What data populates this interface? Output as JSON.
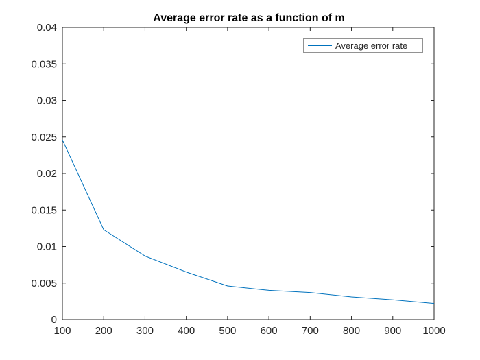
{
  "chart_data": {
    "type": "line",
    "title": "Average error rate as a function of m",
    "xlabel": "",
    "ylabel": "",
    "xlim": [
      100,
      1000
    ],
    "ylim": [
      0,
      0.04
    ],
    "xticks": [
      100,
      200,
      300,
      400,
      500,
      600,
      700,
      800,
      900,
      1000
    ],
    "xtick_labels": [
      "100",
      "200",
      "300",
      "400",
      "500",
      "600",
      "700",
      "800",
      "900",
      "1000"
    ],
    "yticks": [
      0,
      0.005,
      0.01,
      0.015,
      0.02,
      0.025,
      0.03,
      0.035,
      0.04
    ],
    "ytick_labels": [
      "0",
      "0.005",
      "0.01",
      "0.015",
      "0.02",
      "0.025",
      "0.03",
      "0.035",
      "0.04"
    ],
    "grid": false,
    "legend_position": "top-right",
    "series": [
      {
        "name": "Average error rate",
        "color": "#0072bd",
        "x": [
          100,
          200,
          300,
          400,
          500,
          600,
          700,
          800,
          900,
          1000
        ],
        "y": [
          0.0246,
          0.0123,
          0.0087,
          0.0065,
          0.0046,
          0.004,
          0.0037,
          0.0031,
          0.0027,
          0.0022
        ]
      }
    ]
  }
}
